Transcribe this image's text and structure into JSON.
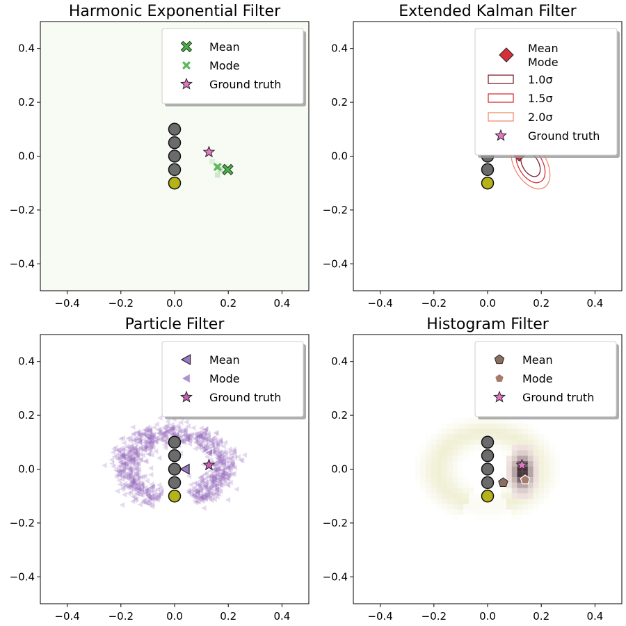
{
  "figure": {
    "background": "#ffffff"
  },
  "chart_data": [
    {
      "type": "scatter",
      "title": "Harmonic Exponential Filter",
      "xlim": [
        -0.5,
        0.5
      ],
      "ylim": [
        -0.5,
        0.5
      ],
      "xticks": [
        -0.4,
        -0.2,
        0.0,
        0.2,
        0.4
      ],
      "yticks": [
        -0.4,
        -0.2,
        0.0,
        0.2,
        0.4
      ],
      "tick_labels": [
        "−0.4",
        "−0.2",
        "0.0",
        "0.2",
        "0.4"
      ],
      "background_fill": "#f7fbf3",
      "landmarks": [
        [
          0,
          0.1
        ],
        [
          0,
          0.05
        ],
        [
          0,
          0.0
        ],
        [
          0,
          -0.05
        ]
      ],
      "robot": [
        0,
        -0.1
      ],
      "density": {
        "color": "#2ca02c",
        "cells": [
          [
            0.16,
            -0.04,
            0.35
          ],
          [
            0.17,
            -0.05,
            0.25
          ],
          [
            0.16,
            -0.07,
            0.2
          ],
          [
            0.19,
            -0.04,
            0.15
          ],
          [
            0.14,
            -0.02,
            0.12
          ]
        ]
      },
      "mean": [
        0.198,
        -0.05
      ],
      "mode": [
        0.16,
        -0.04
      ],
      "ground_truth": [
        0.128,
        0.015
      ],
      "mean_color": "#4daf4a",
      "mode_color": "#5cb85c",
      "legend": {
        "position": "upper right",
        "entries": [
          "Mean",
          "Mode",
          "Ground truth"
        ]
      }
    },
    {
      "type": "scatter",
      "title": "Extended Kalman Filter",
      "xlim": [
        -0.5,
        0.5
      ],
      "ylim": [
        -0.5,
        0.5
      ],
      "xticks": [
        -0.4,
        -0.2,
        0.0,
        0.2,
        0.4
      ],
      "yticks": [
        -0.4,
        -0.2,
        0.0,
        0.2,
        0.4
      ],
      "tick_labels": [
        "−0.4",
        "−0.2",
        "0.0",
        "0.2",
        "0.4"
      ],
      "landmarks": [
        [
          0,
          0.1
        ],
        [
          0,
          0.05
        ],
        [
          0,
          0.0
        ],
        [
          0,
          -0.05
        ]
      ],
      "robot": [
        0,
        -0.1
      ],
      "mean": [
        0.118,
        0.0
      ],
      "ellipse": {
        "cx": 0.16,
        "cy": -0.03,
        "sx": 0.03,
        "sy": 0.05,
        "angle_deg": -30
      },
      "sigma_levels": [
        1.0,
        1.5,
        2.0
      ],
      "sigma_colors": [
        "#7b1f2e",
        "#d62f3a",
        "#f08a6b"
      ],
      "mean_color": "#d62f3a",
      "legend": {
        "position": "upper right",
        "entries": [
          "Mean",
          "Mode",
          "1.0σ",
          "1.5σ",
          "2.0σ",
          "Ground truth"
        ]
      }
    },
    {
      "type": "scatter",
      "title": "Particle Filter",
      "xlim": [
        -0.5,
        0.5
      ],
      "ylim": [
        -0.5,
        0.5
      ],
      "xticks": [
        -0.4,
        -0.2,
        0.0,
        0.2,
        0.4
      ],
      "yticks": [
        -0.4,
        -0.2,
        0.0,
        0.2,
        0.4
      ],
      "tick_labels": [
        "−0.4",
        "−0.2",
        "0.0",
        "0.2",
        "0.4"
      ],
      "landmarks": [
        [
          0,
          0.1
        ],
        [
          0,
          0.05
        ],
        [
          0,
          0.0
        ],
        [
          0,
          -0.05
        ]
      ],
      "robot": [
        0,
        -0.1
      ],
      "particles": {
        "color": "#9467bd",
        "ring_center": [
          0.0,
          0.0
        ],
        "ring_radius": 0.17,
        "ring_width": 0.05,
        "count": 900,
        "gap_angle_deg": [
          250,
          290
        ]
      },
      "mean": [
        0.04,
        0.0
      ],
      "mode": [
        0.128,
        0.06
      ],
      "ground_truth": [
        0.128,
        0.015
      ],
      "mean_color": "#9b77c7",
      "mode_color": "#ffffff",
      "legend": {
        "position": "upper right",
        "entries": [
          "Mean",
          "Mode",
          "Ground truth"
        ]
      }
    },
    {
      "type": "heatmap",
      "title": "Histogram Filter",
      "xlim": [
        -0.5,
        0.5
      ],
      "ylim": [
        -0.5,
        0.5
      ],
      "xticks": [
        -0.4,
        -0.2,
        0.0,
        0.2,
        0.4
      ],
      "yticks": [
        -0.4,
        -0.2,
        0.0,
        0.2,
        0.4
      ],
      "tick_labels": [
        "−0.4",
        "−0.2",
        "0.0",
        "0.2",
        "0.4"
      ],
      "landmarks": [
        [
          0,
          0.1
        ],
        [
          0,
          0.05
        ],
        [
          0,
          0.0
        ],
        [
          0,
          -0.05
        ]
      ],
      "robot": [
        0,
        -0.1
      ],
      "heat": {
        "ring_center": [
          0.0,
          0.0
        ],
        "ring_radius": 0.16,
        "ring_width": 0.05,
        "peak": [
          0.13,
          -0.01
        ],
        "cell": 0.02
      },
      "mean": [
        0.058,
        -0.05
      ],
      "mode": [
        0.14,
        -0.04
      ],
      "ground_truth": [
        0.128,
        0.015
      ],
      "mean_color": "#8c6d62",
      "mode_color": "#a67b6b",
      "legend": {
        "position": "upper right",
        "entries": [
          "Mean",
          "Mode",
          "Ground truth"
        ]
      }
    }
  ]
}
